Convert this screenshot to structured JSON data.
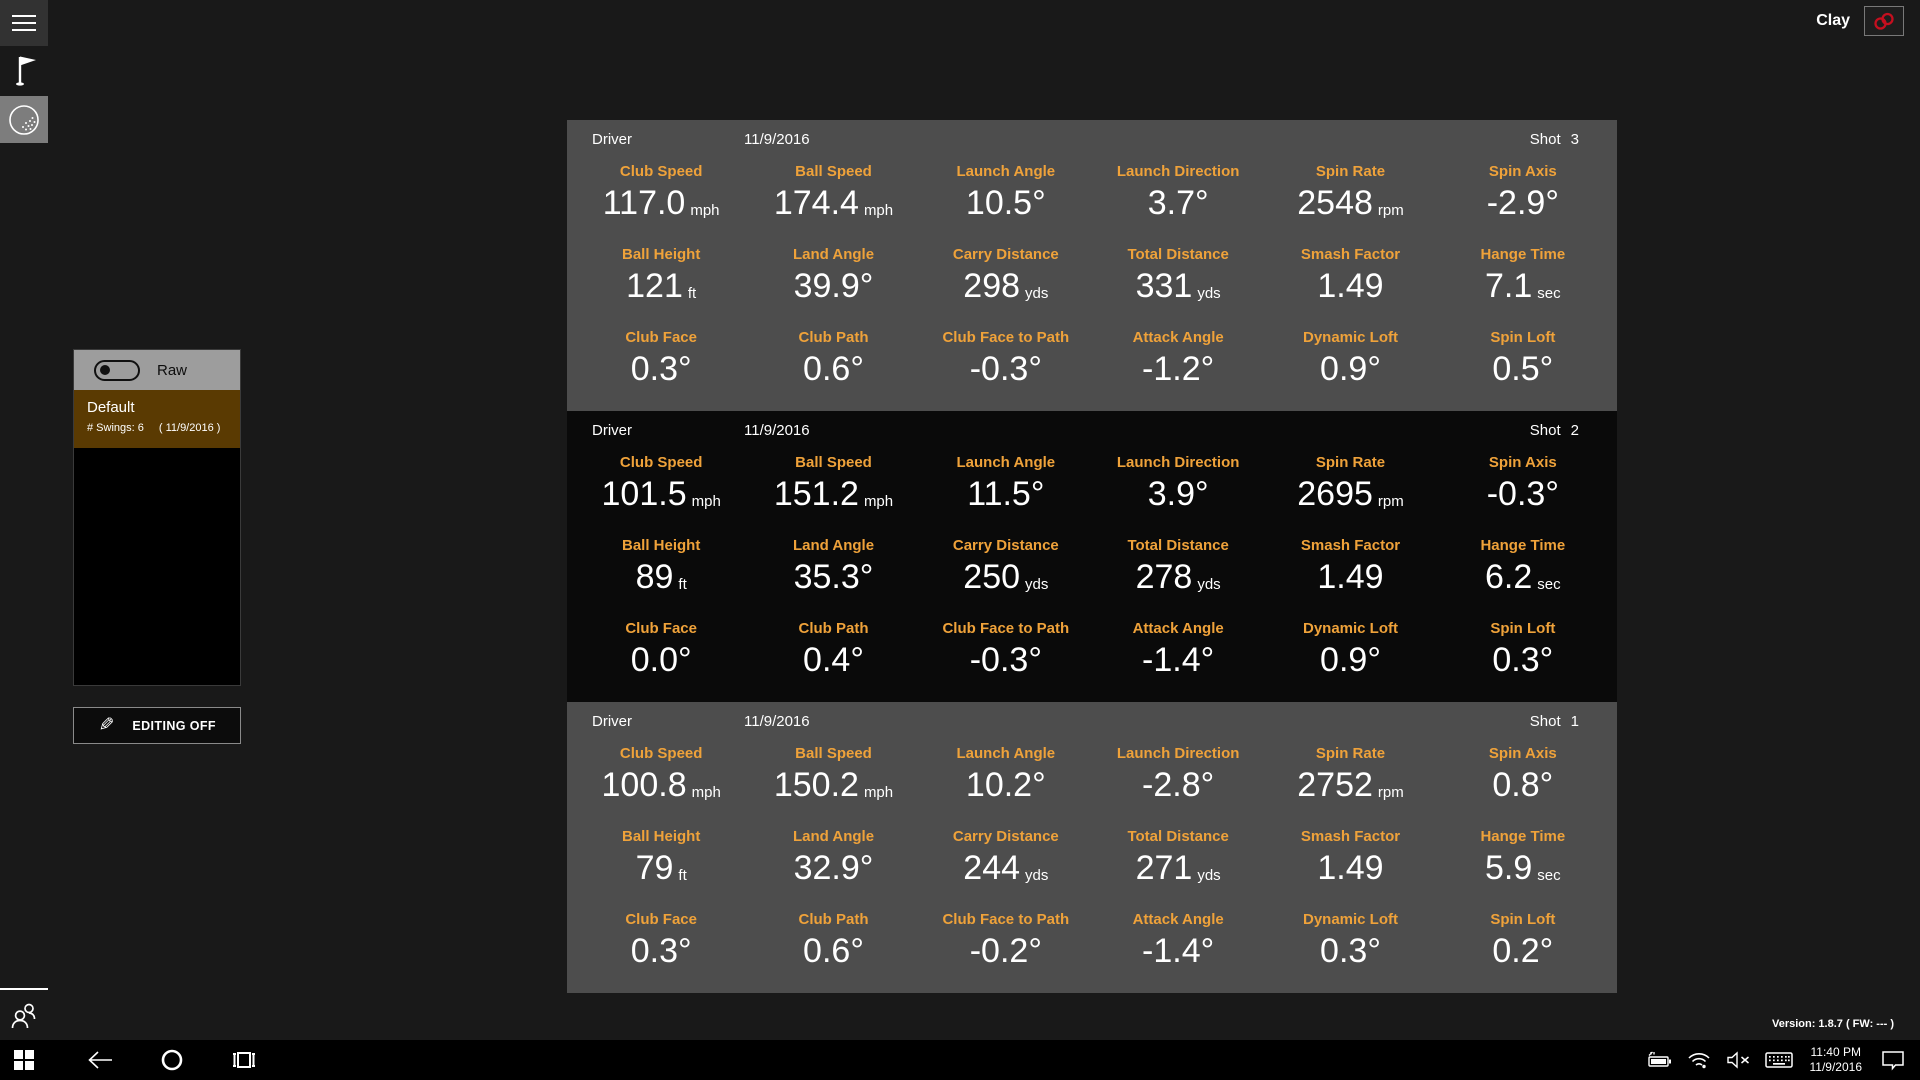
{
  "header": {
    "user": "Clay"
  },
  "left_rail": {
    "icons": [
      {
        "name": "hamburger-menu-icon"
      },
      {
        "name": "golf-flag-icon"
      },
      {
        "name": "golf-ball-icon",
        "selected": true
      },
      {
        "name": "players-icon"
      }
    ]
  },
  "session_panel": {
    "raw_label": "Raw",
    "raw_toggle_state": "off",
    "session_name": "Default",
    "swings_text": "# Swings: 6",
    "session_date_text": "( 11/9/2016 )",
    "editing_button": "EDITING OFF"
  },
  "shots": [
    {
      "club": "Driver",
      "date": "11/9/2016",
      "shot_label": "Shot",
      "shot_number": "3",
      "theme": "gray",
      "metrics": [
        {
          "label": "Club Speed",
          "value": "117.0",
          "unit": "mph"
        },
        {
          "label": "Ball Speed",
          "value": "174.4",
          "unit": "mph"
        },
        {
          "label": "Launch Angle",
          "value": "10.5",
          "unit": "°"
        },
        {
          "label": "Launch Direction",
          "value": "3.7",
          "unit": "°"
        },
        {
          "label": "Spin Rate",
          "value": "2548",
          "unit": "rpm"
        },
        {
          "label": "Spin Axis",
          "value": "-2.9",
          "unit": "°"
        },
        {
          "label": "Ball Height",
          "value": "121",
          "unit": "ft"
        },
        {
          "label": "Land Angle",
          "value": "39.9",
          "unit": "°"
        },
        {
          "label": "Carry Distance",
          "value": "298",
          "unit": "yds"
        },
        {
          "label": "Total Distance",
          "value": "331",
          "unit": "yds"
        },
        {
          "label": "Smash Factor",
          "value": "1.49",
          "unit": ""
        },
        {
          "label": "Hange Time",
          "value": "7.1",
          "unit": "sec"
        },
        {
          "label": "Club Face",
          "value": "0.3",
          "unit": "°"
        },
        {
          "label": "Club Path",
          "value": "0.6",
          "unit": "°"
        },
        {
          "label": "Club Face to Path",
          "value": "-0.3",
          "unit": "°"
        },
        {
          "label": "Attack Angle",
          "value": "-1.2",
          "unit": "°"
        },
        {
          "label": "Dynamic Loft",
          "value": "0.9",
          "unit": "°"
        },
        {
          "label": "Spin Loft",
          "value": "0.5",
          "unit": "°"
        }
      ]
    },
    {
      "club": "Driver",
      "date": "11/9/2016",
      "shot_label": "Shot",
      "shot_number": "2",
      "theme": "black",
      "metrics": [
        {
          "label": "Club Speed",
          "value": "101.5",
          "unit": "mph"
        },
        {
          "label": "Ball Speed",
          "value": "151.2",
          "unit": "mph"
        },
        {
          "label": "Launch Angle",
          "value": "11.5",
          "unit": "°"
        },
        {
          "label": "Launch Direction",
          "value": "3.9",
          "unit": "°"
        },
        {
          "label": "Spin Rate",
          "value": "2695",
          "unit": "rpm"
        },
        {
          "label": "Spin Axis",
          "value": "-0.3",
          "unit": "°"
        },
        {
          "label": "Ball Height",
          "value": "89",
          "unit": "ft"
        },
        {
          "label": "Land Angle",
          "value": "35.3",
          "unit": "°"
        },
        {
          "label": "Carry Distance",
          "value": "250",
          "unit": "yds"
        },
        {
          "label": "Total Distance",
          "value": "278",
          "unit": "yds"
        },
        {
          "label": "Smash Factor",
          "value": "1.49",
          "unit": ""
        },
        {
          "label": "Hange Time",
          "value": "6.2",
          "unit": "sec"
        },
        {
          "label": "Club Face",
          "value": "0.0",
          "unit": "°"
        },
        {
          "label": "Club Path",
          "value": "0.4",
          "unit": "°"
        },
        {
          "label": "Club Face to Path",
          "value": "-0.3",
          "unit": "°"
        },
        {
          "label": "Attack Angle",
          "value": "-1.4",
          "unit": "°"
        },
        {
          "label": "Dynamic Loft",
          "value": "0.9",
          "unit": "°"
        },
        {
          "label": "Spin Loft",
          "value": "0.3",
          "unit": "°"
        }
      ]
    },
    {
      "club": "Driver",
      "date": "11/9/2016",
      "shot_label": "Shot",
      "shot_number": "1",
      "theme": "gray",
      "metrics": [
        {
          "label": "Club Speed",
          "value": "100.8",
          "unit": "mph"
        },
        {
          "label": "Ball Speed",
          "value": "150.2",
          "unit": "mph"
        },
        {
          "label": "Launch Angle",
          "value": "10.2",
          "unit": "°"
        },
        {
          "label": "Launch Direction",
          "value": "-2.8",
          "unit": "°"
        },
        {
          "label": "Spin Rate",
          "value": "2752",
          "unit": "rpm"
        },
        {
          "label": "Spin Axis",
          "value": "0.8",
          "unit": "°"
        },
        {
          "label": "Ball Height",
          "value": "79",
          "unit": "ft"
        },
        {
          "label": "Land Angle",
          "value": "32.9",
          "unit": "°"
        },
        {
          "label": "Carry Distance",
          "value": "244",
          "unit": "yds"
        },
        {
          "label": "Total Distance",
          "value": "271",
          "unit": "yds"
        },
        {
          "label": "Smash Factor",
          "value": "1.49",
          "unit": ""
        },
        {
          "label": "Hange Time",
          "value": "5.9",
          "unit": "sec"
        },
        {
          "label": "Club Face",
          "value": "0.3",
          "unit": "°"
        },
        {
          "label": "Club Path",
          "value": "0.6",
          "unit": "°"
        },
        {
          "label": "Club Face to Path",
          "value": "-0.2",
          "unit": "°"
        },
        {
          "label": "Attack Angle",
          "value": "-1.4",
          "unit": "°"
        },
        {
          "label": "Dynamic Loft",
          "value": "0.3",
          "unit": "°"
        },
        {
          "label": "Spin Loft",
          "value": "0.2",
          "unit": "°"
        }
      ]
    }
  ],
  "status": {
    "version_text": "Version: 1.8.7 ( FW: --- )"
  },
  "taskbar": {
    "time": "11:40 PM",
    "date": "11/9/2016"
  },
  "colors": {
    "accent_orange": "#efa23a",
    "selected_session_bg": "#5a3a02",
    "link_icon_red": "#c50f1f",
    "card_gray": "#4d4d4d",
    "card_black": "#0a0a0a"
  }
}
